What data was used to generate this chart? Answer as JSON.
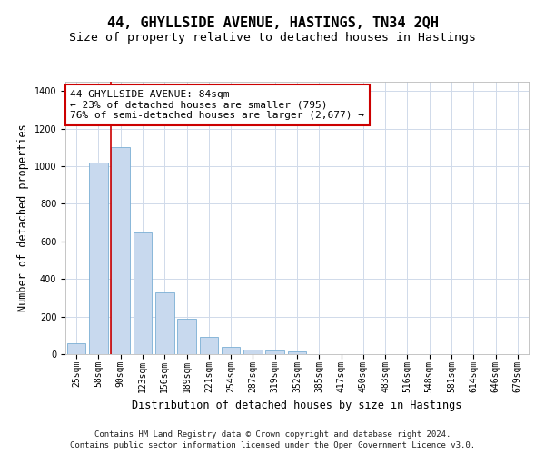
{
  "title": "44, GHYLLSIDE AVENUE, HASTINGS, TN34 2QH",
  "subtitle": "Size of property relative to detached houses in Hastings",
  "xlabel": "Distribution of detached houses by size in Hastings",
  "ylabel": "Number of detached properties",
  "bar_color": "#c8d9ee",
  "bar_edge_color": "#7aafd4",
  "categories": [
    "25sqm",
    "58sqm",
    "90sqm",
    "123sqm",
    "156sqm",
    "189sqm",
    "221sqm",
    "254sqm",
    "287sqm",
    "319sqm",
    "352sqm",
    "385sqm",
    "417sqm",
    "450sqm",
    "483sqm",
    "516sqm",
    "548sqm",
    "581sqm",
    "614sqm",
    "646sqm",
    "679sqm"
  ],
  "values": [
    60,
    1020,
    1100,
    650,
    330,
    190,
    90,
    40,
    25,
    20,
    15,
    0,
    0,
    0,
    0,
    0,
    0,
    0,
    0,
    0,
    0
  ],
  "ylim": [
    0,
    1450
  ],
  "yticks": [
    0,
    200,
    400,
    600,
    800,
    1000,
    1200,
    1400
  ],
  "vline_bin_index": 2,
  "annotation_line1": "44 GHYLLSIDE AVENUE: 84sqm",
  "annotation_line2": "← 23% of detached houses are smaller (795)",
  "annotation_line3": "76% of semi-detached houses are larger (2,677) →",
  "vline_color": "#cc0000",
  "annotation_box_edge": "#cc0000",
  "footer_line1": "Contains HM Land Registry data © Crown copyright and database right 2024.",
  "footer_line2": "Contains public sector information licensed under the Open Government Licence v3.0.",
  "bg_color": "#ffffff",
  "grid_color": "#d0daea",
  "title_fontsize": 11,
  "subtitle_fontsize": 9.5,
  "axis_label_fontsize": 8.5,
  "tick_fontsize": 7,
  "annotation_fontsize": 8,
  "footer_fontsize": 6.5
}
